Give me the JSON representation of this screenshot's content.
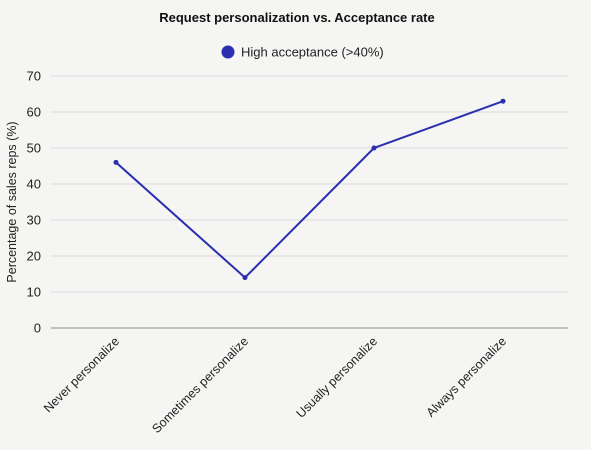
{
  "chart_data": {
    "type": "line",
    "title": "Request personalization vs. Acceptance rate",
    "xlabel": "",
    "ylabel": "Percentage of sales reps (%)",
    "categories": [
      "Never personalize",
      "Sometimes personalize",
      "Usually personalize",
      "Always personalize"
    ],
    "series": [
      {
        "name": "High acceptance (>40%)",
        "values": [
          46,
          14,
          50,
          63
        ],
        "color": "#2b2fae"
      }
    ],
    "ylim": [
      0,
      70
    ],
    "yticks": [
      0,
      10,
      20,
      30,
      40,
      50,
      60,
      70
    ],
    "grid": true,
    "legend": "top-center"
  }
}
